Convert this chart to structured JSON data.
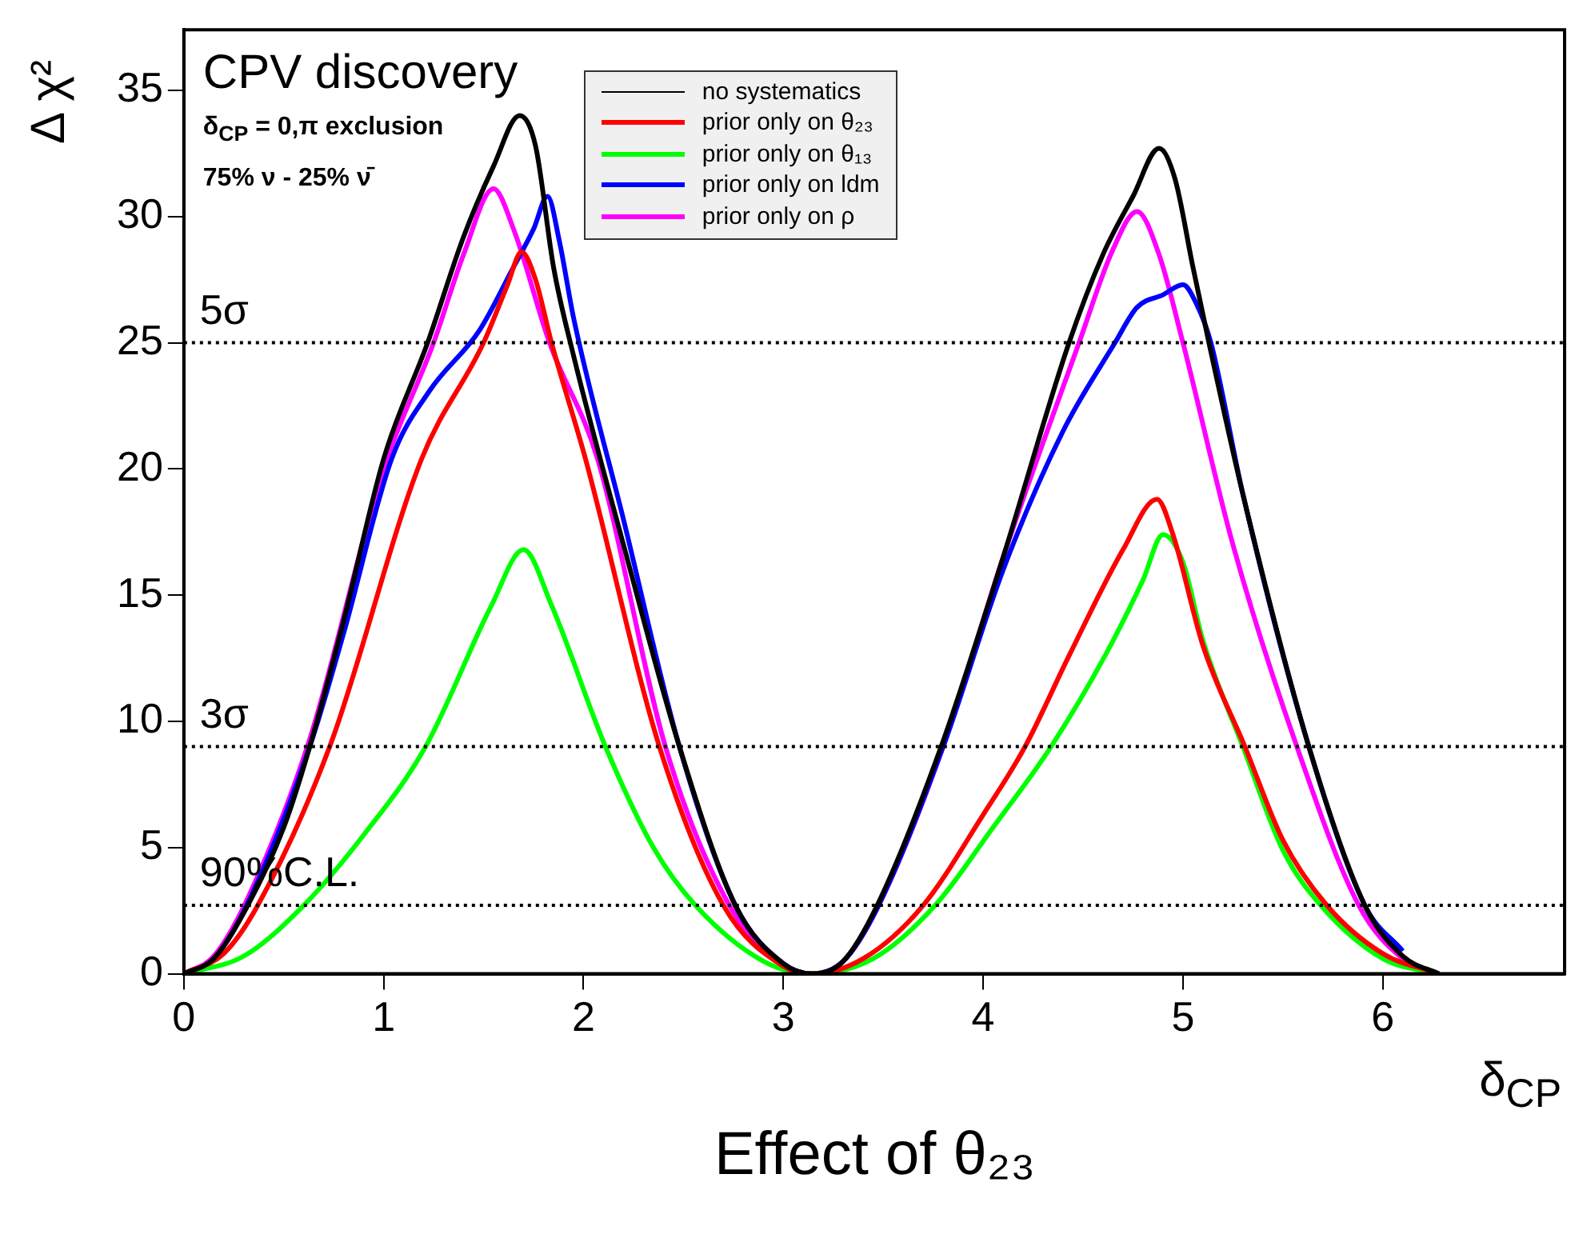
{
  "chart_data": {
    "type": "line",
    "title": "Effect of θ₂₃",
    "xlabel": "δ$_{CP}$",
    "ylabel": "Δ χ²",
    "annotations": [
      "CPV discovery",
      "δ$_{CP}$ = 0,π exclusion",
      "75% ν - 25% ν̄"
    ],
    "xlim": [
      0,
      6.91
    ],
    "xticks": [
      0,
      1,
      2,
      3,
      4,
      5,
      6
    ],
    "ylim": [
      0,
      37.4
    ],
    "yticks": [
      0,
      5,
      10,
      15,
      20,
      25,
      30,
      35
    ],
    "grid": false,
    "legend": "top",
    "marker": "none",
    "line_style": "solid",
    "ref_lines": [
      {
        "axis": "y",
        "value": 25,
        "label": "5σ",
        "color": "#000000",
        "line_style": "dotted"
      },
      {
        "axis": "y",
        "value": 9,
        "label": "3σ",
        "color": "#000000",
        "line_style": "dotted"
      },
      {
        "axis": "y",
        "value": 2.71,
        "label": "90%C.L.",
        "color": "#000000",
        "line_style": "dotted"
      }
    ],
    "series": [
      {
        "name": "no systematics",
        "color": "#000000",
        "x": [
          0,
          0.15,
          0.32,
          0.5,
          0.63,
          0.8,
          1.0,
          1.22,
          1.4,
          1.55,
          1.68,
          1.76,
          1.85,
          1.95,
          2.2,
          2.48,
          2.76,
          3.0,
          3.14,
          3.3,
          3.47,
          3.79,
          4.1,
          4.43,
          4.6,
          4.75,
          4.88,
          4.96,
          5.05,
          5.13,
          5.3,
          5.63,
          5.91,
          6.1,
          6.28
        ],
        "values": [
          0,
          0.6,
          2.71,
          5.8,
          9,
          14,
          20.4,
          25,
          29.2,
          32,
          34.0,
          32.8,
          28,
          24.5,
          17,
          9,
          2.71,
          0.4,
          0,
          0.5,
          2.71,
          9,
          16.5,
          25,
          28.5,
          30.8,
          32.7,
          31.5,
          28,
          25,
          19,
          9,
          2.71,
          0.7,
          0
        ]
      },
      {
        "name": "prior only on θ₂₃",
        "color": "#ff0000",
        "x": [
          0,
          0.2,
          0.37,
          0.73,
          1.19,
          1.5,
          1.62,
          1.69,
          1.76,
          1.84,
          2.01,
          2.38,
          2.7,
          3.0,
          3.14,
          3.4,
          3.7,
          4.0,
          4.21,
          4.43,
          4.7,
          4.87,
          4.95,
          5.1,
          5.31,
          5.5,
          5.72,
          6.0,
          6.28
        ],
        "values": [
          0,
          0.8,
          2.71,
          9,
          20.4,
          25,
          27.3,
          28.6,
          27.5,
          25,
          20.4,
          9,
          2.71,
          0.3,
          0,
          0.6,
          2.71,
          6.3,
          9,
          12.6,
          16.8,
          18.8,
          17.4,
          13,
          9,
          5.3,
          2.71,
          0.8,
          0
        ]
      },
      {
        "name": "prior only on θ₁₃",
        "color": "#00ff00",
        "x": [
          0,
          0.3,
          0.6,
          0.9,
          1.21,
          1.54,
          1.7,
          1.84,
          2.11,
          2.35,
          2.56,
          2.9,
          3.14,
          3.45,
          3.76,
          4.05,
          4.34,
          4.61,
          4.8,
          4.9,
          5.0,
          5.1,
          5.3,
          5.5,
          5.69,
          6.0,
          6.28
        ],
        "values": [
          0,
          0.7,
          2.71,
          5.5,
          9,
          14.6,
          16.8,
          14.6,
          9,
          5,
          2.71,
          0.5,
          0,
          0.6,
          2.71,
          5.8,
          9,
          12.6,
          15.6,
          17.4,
          16.3,
          13.2,
          9,
          4.9,
          2.71,
          0.6,
          0
        ]
      },
      {
        "name": "prior only on ldm",
        "color": "#0000ff",
        "x": [
          0,
          0.15,
          0.32,
          0.63,
          0.8,
          1.04,
          1.23,
          1.48,
          1.65,
          1.75,
          1.82,
          1.88,
          1.95,
          2.2,
          2.48,
          2.76,
          3.0,
          3.14,
          3.3,
          3.47,
          3.8,
          4.1,
          4.4,
          4.66,
          4.77,
          4.9,
          5.0,
          5.07,
          5.14,
          5.3,
          5.63,
          5.91,
          6.1
        ],
        "values": [
          0,
          0.6,
          2.8,
          9,
          13.5,
          20.4,
          23.1,
          25.5,
          28,
          29.5,
          30.8,
          29,
          26,
          18,
          9,
          2.71,
          0.4,
          0,
          0.5,
          2.6,
          9,
          16,
          21.5,
          25,
          26.4,
          26.9,
          27.3,
          26.5,
          25,
          19,
          9,
          2.71,
          0.9
        ]
      },
      {
        "name": "prior only on ρ",
        "color": "#ff00ff",
        "x": [
          0,
          0.15,
          0.32,
          0.63,
          1.0,
          1.25,
          1.4,
          1.55,
          1.65,
          1.83,
          2.07,
          2.41,
          2.73,
          3.0,
          3.14,
          3.3,
          3.47,
          3.8,
          4.1,
          4.48,
          4.65,
          4.77,
          4.88,
          5.0,
          5.25,
          5.57,
          5.88,
          6.1,
          6.28
        ],
        "values": [
          0,
          0.7,
          3,
          9.3,
          20,
          25,
          28.5,
          31.1,
          29.5,
          25,
          20.4,
          9,
          2.71,
          0.4,
          0,
          0.5,
          2.6,
          9,
          16.5,
          25,
          28.7,
          30.2,
          28.5,
          25,
          17,
          9,
          2.71,
          0.6,
          0
        ]
      }
    ]
  }
}
